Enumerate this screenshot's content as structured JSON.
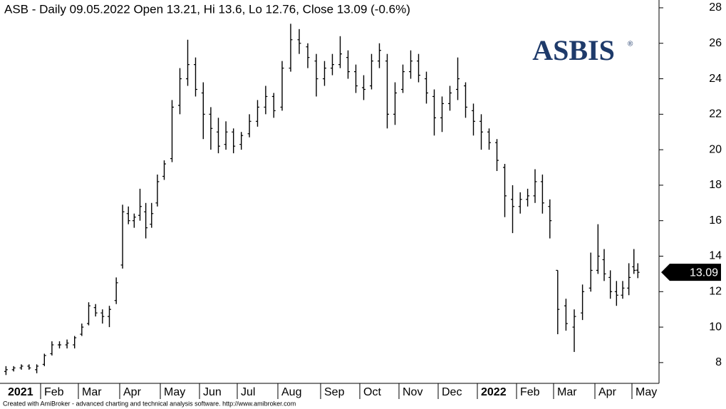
{
  "chart_data": {
    "type": "ohlc",
    "title": "ASB - Daily 09.05.2022 Open 13.21, Hi 13.6, Lo 12.76, Close 13.09 (-0.6%)",
    "logo": "ASBIS",
    "logo_mark": "®",
    "footer": "Created with AmiBroker - advanced charting and technical analysis software. http://www.amibroker.com",
    "color": "#000000",
    "ylim": [
      6.83,
      28.44
    ],
    "yticks": [
      8,
      10,
      12,
      14,
      16,
      18,
      20,
      22,
      24,
      26,
      28
    ],
    "last_value": 13.09,
    "last_color": "#000000",
    "months": [
      {
        "label": "2021",
        "bars": [
          [
            7.5,
            7.8,
            7.3,
            7.6
          ],
          [
            7.6,
            7.8,
            7.5,
            7.7
          ],
          [
            7.7,
            7.9,
            7.6,
            7.8
          ],
          [
            7.8,
            7.9,
            7.6,
            7.7
          ],
          [
            7.6,
            7.9,
            7.4,
            7.8
          ]
        ]
      },
      {
        "label": "Feb",
        "bars": [
          [
            7.9,
            8.5,
            7.8,
            8.4
          ],
          [
            8.5,
            9.2,
            8.4,
            9.0
          ],
          [
            9.0,
            9.2,
            8.8,
            9.0
          ],
          [
            9.0,
            9.3,
            8.8,
            9.1
          ],
          [
            9.0,
            9.5,
            8.8,
            9.4
          ]
        ]
      },
      {
        "label": "Mar",
        "bars": [
          [
            9.6,
            10.2,
            9.5,
            10.0
          ],
          [
            10.2,
            11.4,
            10.1,
            11.2
          ],
          [
            11.1,
            11.3,
            10.6,
            10.8
          ],
          [
            10.8,
            11.0,
            10.2,
            10.6
          ],
          [
            10.6,
            11.2,
            10.0,
            11.0
          ],
          [
            11.5,
            12.8,
            11.3,
            12.5
          ]
        ]
      },
      {
        "label": "Apr",
        "bars": [
          [
            13.5,
            16.9,
            13.3,
            16.5
          ],
          [
            16.4,
            16.8,
            15.8,
            16.0
          ],
          [
            16.0,
            16.4,
            15.6,
            16.2
          ],
          [
            16.3,
            17.8,
            16.0,
            16.8
          ],
          [
            16.5,
            17.0,
            15.0,
            15.6
          ],
          [
            15.8,
            17.0,
            15.6,
            16.4
          ],
          [
            17.0,
            18.6,
            16.8,
            18.2
          ]
        ]
      },
      {
        "label": "May",
        "bars": [
          [
            18.5,
            19.4,
            18.3,
            19.2
          ],
          [
            19.5,
            22.8,
            19.3,
            22.4
          ],
          [
            22.5,
            24.6,
            22.0,
            24.0
          ],
          [
            24.0,
            26.2,
            23.6,
            24.8
          ],
          [
            24.8,
            25.2,
            23.0,
            23.4
          ]
        ]
      },
      {
        "label": "Jun",
        "bars": [
          [
            23.2,
            23.8,
            20.6,
            22.0
          ],
          [
            22.0,
            22.4,
            20.0,
            21.2
          ],
          [
            21.0,
            21.8,
            19.8,
            20.2
          ],
          [
            20.3,
            21.6,
            20.0,
            21.0
          ],
          [
            21.0,
            21.2,
            19.8,
            20.2
          ]
        ]
      },
      {
        "label": "Jul",
        "bars": [
          [
            20.3,
            21.0,
            20.0,
            20.8
          ],
          [
            20.9,
            22.0,
            20.7,
            21.6
          ],
          [
            21.6,
            22.8,
            21.3,
            22.4
          ],
          [
            22.4,
            23.6,
            22.0,
            23.0
          ],
          [
            23.0,
            23.2,
            21.8,
            22.2
          ]
        ]
      },
      {
        "label": "Aug",
        "bars": [
          [
            22.4,
            25.0,
            22.2,
            24.6
          ],
          [
            24.6,
            27.1,
            24.4,
            26.2
          ],
          [
            26.2,
            26.8,
            25.4,
            26.0
          ],
          [
            25.8,
            26.0,
            24.6,
            25.2
          ],
          [
            25.0,
            25.4,
            23.0,
            24.0
          ]
        ]
      },
      {
        "label": "Sep",
        "bars": [
          [
            24.0,
            25.0,
            23.6,
            24.6
          ],
          [
            24.6,
            25.4,
            24.2,
            24.8
          ],
          [
            24.8,
            26.4,
            24.6,
            25.4
          ],
          [
            25.2,
            25.6,
            24.0,
            24.4
          ],
          [
            24.4,
            24.8,
            23.2,
            23.6
          ]
        ]
      },
      {
        "label": "Oct",
        "bars": [
          [
            23.5,
            24.2,
            22.8,
            23.4
          ],
          [
            23.6,
            25.4,
            23.4,
            25.0
          ],
          [
            25.0,
            26.0,
            24.6,
            25.6
          ],
          [
            25.0,
            25.4,
            21.2,
            22.0
          ],
          [
            22.0,
            23.8,
            21.4,
            23.2
          ]
        ]
      },
      {
        "label": "Nov",
        "bars": [
          [
            23.4,
            24.8,
            23.2,
            24.4
          ],
          [
            24.4,
            25.6,
            24.0,
            25.0
          ],
          [
            25.0,
            25.4,
            23.8,
            24.2
          ],
          [
            24.0,
            24.4,
            22.6,
            23.2
          ],
          [
            23.0,
            23.4,
            20.8,
            21.8
          ]
        ]
      },
      {
        "label": "Dec",
        "bars": [
          [
            21.8,
            23.0,
            21.0,
            22.6
          ],
          [
            22.6,
            23.6,
            22.2,
            23.2
          ],
          [
            23.4,
            25.2,
            22.8,
            24.0
          ],
          [
            23.6,
            23.8,
            21.8,
            22.4
          ],
          [
            22.2,
            22.6,
            20.8,
            21.6
          ]
        ]
      },
      {
        "label": "2022",
        "bars": [
          [
            21.6,
            22.0,
            20.0,
            21.0
          ],
          [
            21.0,
            21.2,
            20.0,
            20.4
          ],
          [
            20.4,
            20.6,
            18.8,
            19.4
          ],
          [
            19.0,
            19.2,
            16.2,
            17.4
          ],
          [
            17.2,
            18.0,
            15.3,
            16.8
          ]
        ]
      },
      {
        "label": "Feb",
        "bars": [
          [
            16.8,
            17.6,
            16.4,
            17.2
          ],
          [
            17.2,
            17.8,
            16.8,
            17.4
          ],
          [
            17.4,
            18.9,
            17.0,
            18.2
          ],
          [
            18.2,
            18.6,
            16.4,
            17.0
          ],
          [
            16.8,
            17.2,
            15.0,
            16.0
          ]
        ]
      },
      {
        "label": "Mar",
        "bars": [
          [
            13.2,
            13.2,
            9.6,
            11.0
          ],
          [
            11.2,
            11.6,
            9.8,
            10.2
          ],
          [
            10.0,
            11.0,
            8.6,
            10.6
          ],
          [
            10.8,
            12.4,
            10.4,
            12.0
          ],
          [
            12.2,
            14.2,
            12.0,
            13.2
          ]
        ]
      },
      {
        "label": "Apr",
        "bars": [
          [
            13.2,
            15.8,
            13.0,
            14.0
          ],
          [
            13.8,
            14.4,
            12.6,
            13.0
          ],
          [
            12.8,
            13.2,
            11.6,
            12.0
          ],
          [
            12.0,
            12.6,
            11.2,
            11.8
          ],
          [
            11.8,
            12.6,
            11.6,
            12.2
          ],
          [
            12.2,
            13.6,
            11.8,
            12.8
          ]
        ]
      },
      {
        "label": "May",
        "bars": [
          [
            13.4,
            14.4,
            13.0,
            13.2
          ],
          [
            13.21,
            13.6,
            12.76,
            13.09
          ]
        ]
      }
    ]
  }
}
